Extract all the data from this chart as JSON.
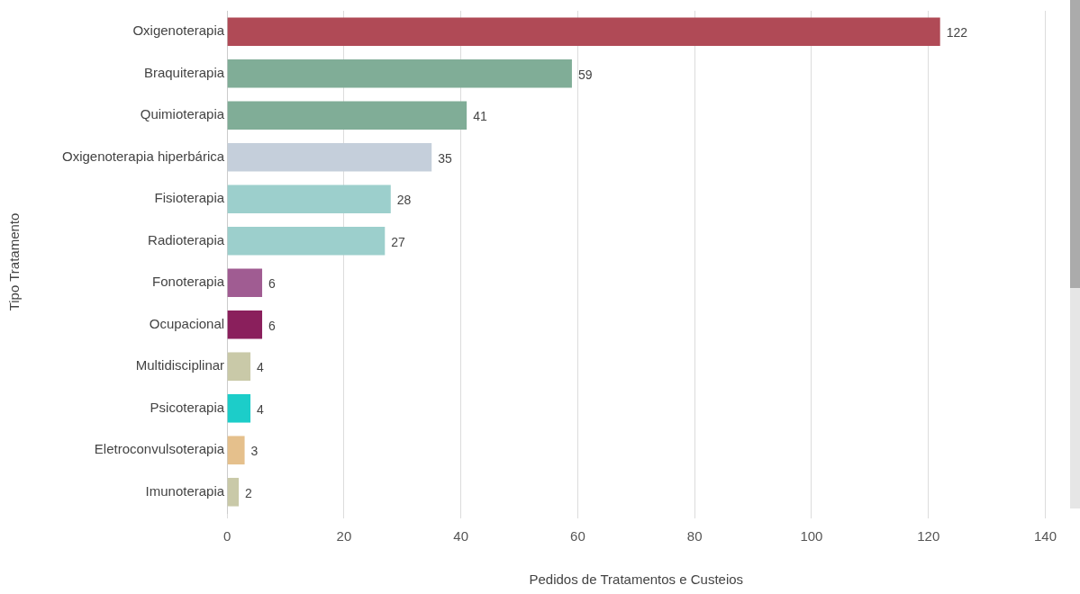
{
  "chart_data": {
    "type": "bar",
    "orientation": "horizontal",
    "xlabel": "Pedidos de Tratamentos e Custeios",
    "ylabel": "Tipo Tratamento",
    "categories": [
      "Oxigenoterapia",
      "Braquiterapia",
      "Quimioterapia",
      "Oxigenoterapia hiperbárica",
      "Fisioterapia",
      "Radioterapia",
      "Fonoterapia",
      "Ocupacional",
      "Multidisciplinar",
      "Psicoterapia",
      "Eletroconvulsoterapia",
      "Imunoterapia"
    ],
    "values": [
      122,
      59,
      41,
      35,
      28,
      27,
      6,
      6,
      4,
      4,
      3,
      2
    ],
    "colors": [
      "#b04a56",
      "#80ad97",
      "#80ad97",
      "#c5cfdb",
      "#9ccfcc",
      "#9ccfcc",
      "#a05c92",
      "#8a1f5c",
      "#c9c9a8",
      "#1ccdc9",
      "#e5c08c",
      "#c9c9a8"
    ],
    "xlim": [
      0,
      140
    ],
    "xticks": [
      0,
      20,
      40,
      60,
      80,
      100,
      120,
      140
    ],
    "grid": "x",
    "data_labels": true,
    "legend": false
  }
}
